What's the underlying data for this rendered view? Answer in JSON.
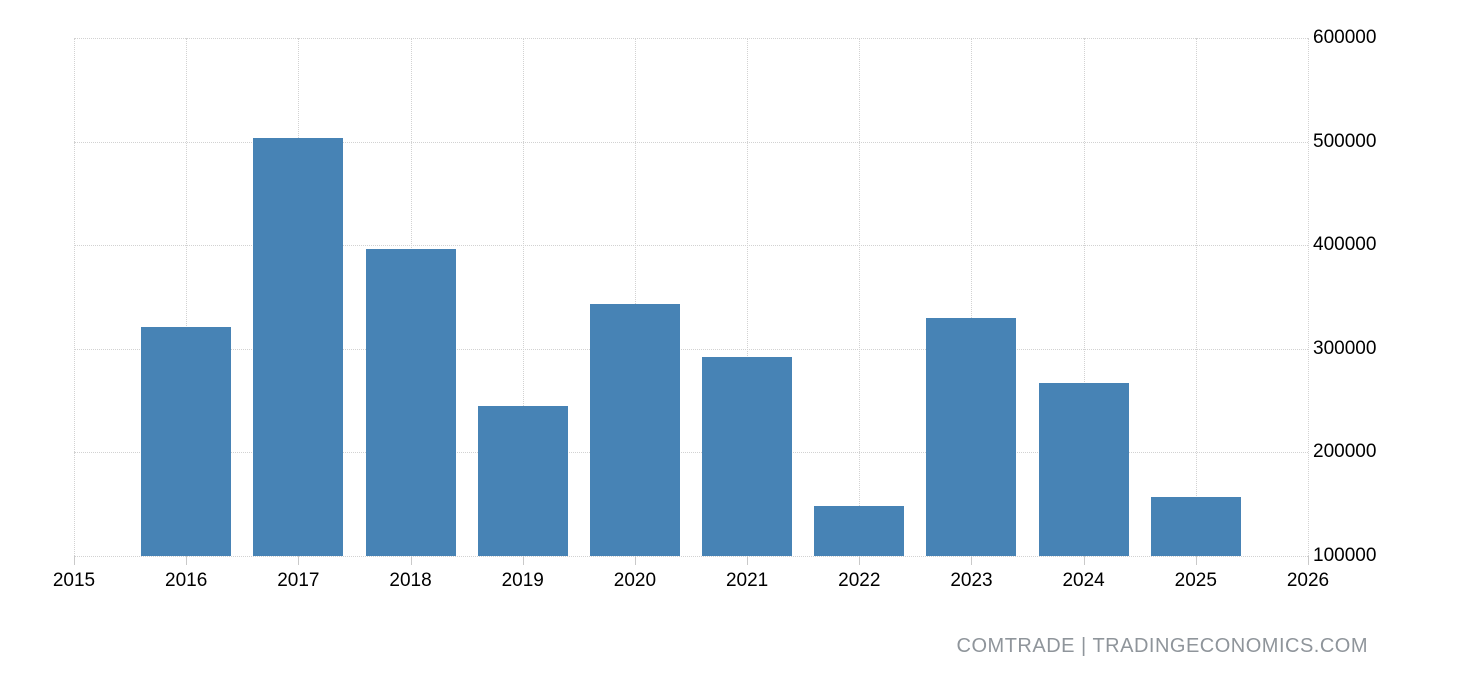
{
  "chart_data": {
    "type": "bar",
    "title": "",
    "xlabel": "",
    "ylabel": "",
    "categories": [
      "2016",
      "2017",
      "2018",
      "2019",
      "2020",
      "2021",
      "2022",
      "2023",
      "2024",
      "2025"
    ],
    "values": [
      321000,
      503000,
      396000,
      245000,
      343000,
      292000,
      148000,
      330000,
      267000,
      157000
    ],
    "ylim": [
      100000,
      600000
    ],
    "y_ticks": [
      600000,
      500000,
      400000,
      300000,
      200000,
      100000
    ],
    "y_tick_labels": [
      "600000",
      "500000",
      "400000",
      "300000",
      "200000",
      "100000"
    ],
    "x_ticks": [
      "2015",
      "2016",
      "2017",
      "2018",
      "2019",
      "2020",
      "2021",
      "2022",
      "2023",
      "2024",
      "2025",
      "2026"
    ],
    "grid": true,
    "legend": "none",
    "y_axis_side": "right",
    "bar_color": "#4783b5",
    "gridline_color": "#d2d2d2",
    "tick_mark_color": "#c9c9c9",
    "label_color": "#000000"
  },
  "attribution": {
    "text": "COMTRADE | TRADINGECONOMICS.COM",
    "color": "#8f959b"
  }
}
